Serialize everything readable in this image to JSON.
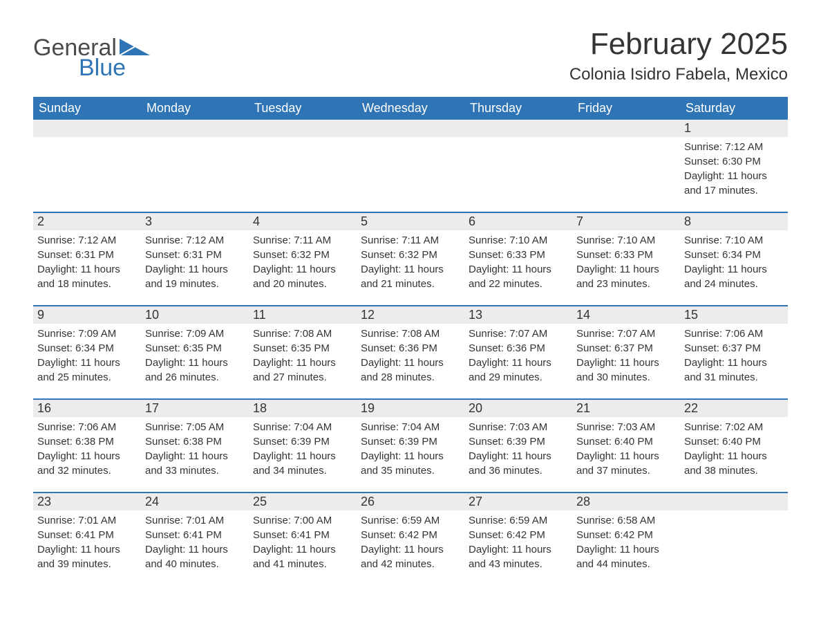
{
  "logo": {
    "word1": "General",
    "word2": "Blue",
    "triangle_color": "#2f74b5"
  },
  "header": {
    "month_title": "February 2025",
    "location": "Colonia Isidro Fabela, Mexico"
  },
  "colors": {
    "header_bg": "#2f74b5",
    "header_text": "#ffffff",
    "daynum_bg": "#ececec",
    "text": "#343434",
    "page_bg": "#ffffff"
  },
  "day_names": [
    "Sunday",
    "Monday",
    "Tuesday",
    "Wednesday",
    "Thursday",
    "Friday",
    "Saturday"
  ],
  "weeks": [
    [
      null,
      null,
      null,
      null,
      null,
      null,
      {
        "n": "1",
        "sunrise": "7:12 AM",
        "sunset": "6:30 PM",
        "dl1": "11 hours",
        "dl2": "and 17 minutes."
      }
    ],
    [
      {
        "n": "2",
        "sunrise": "7:12 AM",
        "sunset": "6:31 PM",
        "dl1": "11 hours",
        "dl2": "and 18 minutes."
      },
      {
        "n": "3",
        "sunrise": "7:12 AM",
        "sunset": "6:31 PM",
        "dl1": "11 hours",
        "dl2": "and 19 minutes."
      },
      {
        "n": "4",
        "sunrise": "7:11 AM",
        "sunset": "6:32 PM",
        "dl1": "11 hours",
        "dl2": "and 20 minutes."
      },
      {
        "n": "5",
        "sunrise": "7:11 AM",
        "sunset": "6:32 PM",
        "dl1": "11 hours",
        "dl2": "and 21 minutes."
      },
      {
        "n": "6",
        "sunrise": "7:10 AM",
        "sunset": "6:33 PM",
        "dl1": "11 hours",
        "dl2": "and 22 minutes."
      },
      {
        "n": "7",
        "sunrise": "7:10 AM",
        "sunset": "6:33 PM",
        "dl1": "11 hours",
        "dl2": "and 23 minutes."
      },
      {
        "n": "8",
        "sunrise": "7:10 AM",
        "sunset": "6:34 PM",
        "dl1": "11 hours",
        "dl2": "and 24 minutes."
      }
    ],
    [
      {
        "n": "9",
        "sunrise": "7:09 AM",
        "sunset": "6:34 PM",
        "dl1": "11 hours",
        "dl2": "and 25 minutes."
      },
      {
        "n": "10",
        "sunrise": "7:09 AM",
        "sunset": "6:35 PM",
        "dl1": "11 hours",
        "dl2": "and 26 minutes."
      },
      {
        "n": "11",
        "sunrise": "7:08 AM",
        "sunset": "6:35 PM",
        "dl1": "11 hours",
        "dl2": "and 27 minutes."
      },
      {
        "n": "12",
        "sunrise": "7:08 AM",
        "sunset": "6:36 PM",
        "dl1": "11 hours",
        "dl2": "and 28 minutes."
      },
      {
        "n": "13",
        "sunrise": "7:07 AM",
        "sunset": "6:36 PM",
        "dl1": "11 hours",
        "dl2": "and 29 minutes."
      },
      {
        "n": "14",
        "sunrise": "7:07 AM",
        "sunset": "6:37 PM",
        "dl1": "11 hours",
        "dl2": "and 30 minutes."
      },
      {
        "n": "15",
        "sunrise": "7:06 AM",
        "sunset": "6:37 PM",
        "dl1": "11 hours",
        "dl2": "and 31 minutes."
      }
    ],
    [
      {
        "n": "16",
        "sunrise": "7:06 AM",
        "sunset": "6:38 PM",
        "dl1": "11 hours",
        "dl2": "and 32 minutes."
      },
      {
        "n": "17",
        "sunrise": "7:05 AM",
        "sunset": "6:38 PM",
        "dl1": "11 hours",
        "dl2": "and 33 minutes."
      },
      {
        "n": "18",
        "sunrise": "7:04 AM",
        "sunset": "6:39 PM",
        "dl1": "11 hours",
        "dl2": "and 34 minutes."
      },
      {
        "n": "19",
        "sunrise": "7:04 AM",
        "sunset": "6:39 PM",
        "dl1": "11 hours",
        "dl2": "and 35 minutes."
      },
      {
        "n": "20",
        "sunrise": "7:03 AM",
        "sunset": "6:39 PM",
        "dl1": "11 hours",
        "dl2": "and 36 minutes."
      },
      {
        "n": "21",
        "sunrise": "7:03 AM",
        "sunset": "6:40 PM",
        "dl1": "11 hours",
        "dl2": "and 37 minutes."
      },
      {
        "n": "22",
        "sunrise": "7:02 AM",
        "sunset": "6:40 PM",
        "dl1": "11 hours",
        "dl2": "and 38 minutes."
      }
    ],
    [
      {
        "n": "23",
        "sunrise": "7:01 AM",
        "sunset": "6:41 PM",
        "dl1": "11 hours",
        "dl2": "and 39 minutes."
      },
      {
        "n": "24",
        "sunrise": "7:01 AM",
        "sunset": "6:41 PM",
        "dl1": "11 hours",
        "dl2": "and 40 minutes."
      },
      {
        "n": "25",
        "sunrise": "7:00 AM",
        "sunset": "6:41 PM",
        "dl1": "11 hours",
        "dl2": "and 41 minutes."
      },
      {
        "n": "26",
        "sunrise": "6:59 AM",
        "sunset": "6:42 PM",
        "dl1": "11 hours",
        "dl2": "and 42 minutes."
      },
      {
        "n": "27",
        "sunrise": "6:59 AM",
        "sunset": "6:42 PM",
        "dl1": "11 hours",
        "dl2": "and 43 minutes."
      },
      {
        "n": "28",
        "sunrise": "6:58 AM",
        "sunset": "6:42 PM",
        "dl1": "11 hours",
        "dl2": "and 44 minutes."
      },
      null
    ]
  ],
  "labels": {
    "sunrise": "Sunrise: ",
    "sunset": "Sunset: ",
    "daylight": "Daylight: "
  }
}
